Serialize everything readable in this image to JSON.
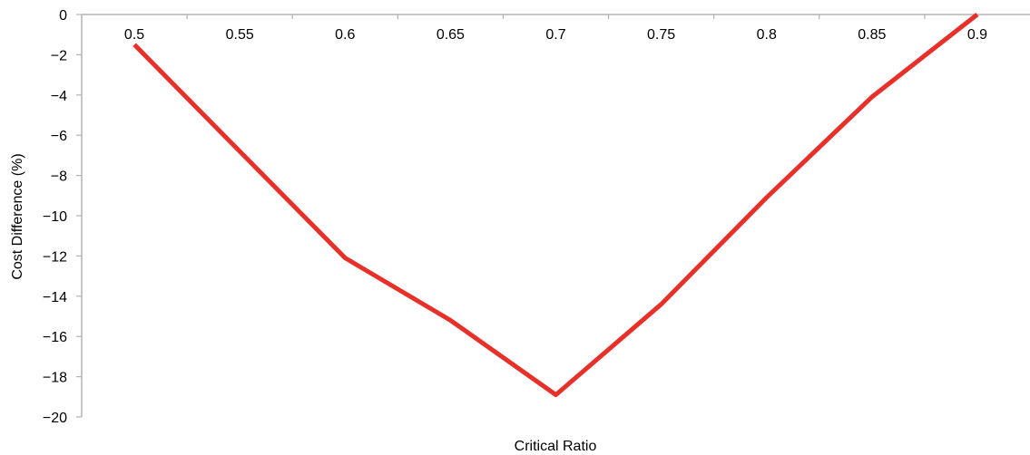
{
  "chart_data": {
    "type": "line",
    "title": "",
    "xlabel": "Critical Ratio",
    "ylabel": "Cost Difference (%)",
    "x": [
      0.5,
      0.55,
      0.6,
      0.65,
      0.7,
      0.75,
      0.8,
      0.85,
      0.9
    ],
    "x_tick_labels": [
      "0.5",
      "0.55",
      "0.6",
      "0.65",
      "0.7",
      "0.75",
      "0.8",
      "0.85",
      "0.9"
    ],
    "y_tick_labels": [
      "0",
      "−2",
      "−4",
      "−6",
      "−8",
      "−10",
      "−12",
      "−14",
      "−16",
      "−18",
      "−20"
    ],
    "ylim": [
      -20,
      0
    ],
    "xlim": [
      0.475,
      0.925
    ],
    "grid": false,
    "legend": "none",
    "series": [
      {
        "values": [
          -1.5,
          -6.8,
          -12.1,
          -15.2,
          -18.9,
          -14.4,
          -9.1,
          -4.1,
          0.0
        ],
        "color": "#e8302a"
      }
    ],
    "axis_color": "#b3b3b3"
  }
}
